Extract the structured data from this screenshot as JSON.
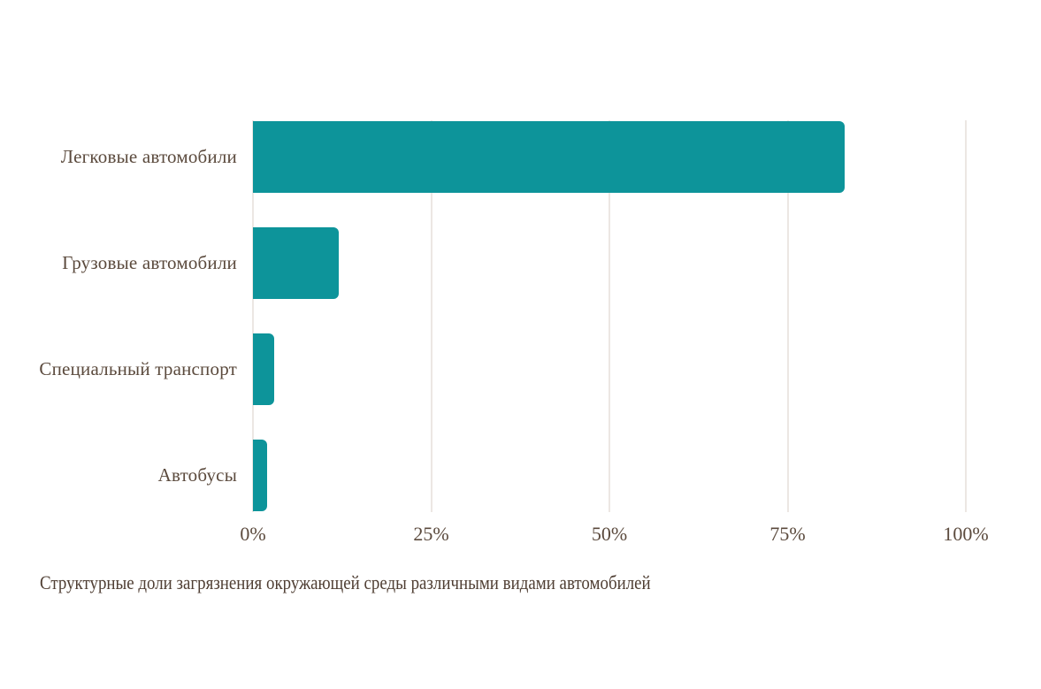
{
  "chart_data": {
    "type": "bar",
    "orientation": "horizontal",
    "title": "Структурные доли загрязнения окружающей среды различными видами автомобилей",
    "categories": [
      "Легковые автомобили",
      "Грузовые автомобили",
      "Специальный транспорт",
      "Автобусы"
    ],
    "values": [
      83,
      12,
      3,
      2
    ],
    "unit": "%",
    "xlim": [
      0,
      100
    ],
    "x_tick_values": [
      0,
      25,
      50,
      75,
      100
    ],
    "x_ticks": [
      "0%",
      "25%",
      "50%",
      "75%",
      "100%"
    ],
    "grid": "vertical-only",
    "legend": "none",
    "value_labels": "none",
    "colors": {
      "bar": "#0d949a",
      "category_label": "#5b4a3d",
      "tick_label": "#5b4a3d",
      "title": "#4f3e33",
      "gridline": "#ece7e3",
      "background": "#ffffff"
    }
  }
}
